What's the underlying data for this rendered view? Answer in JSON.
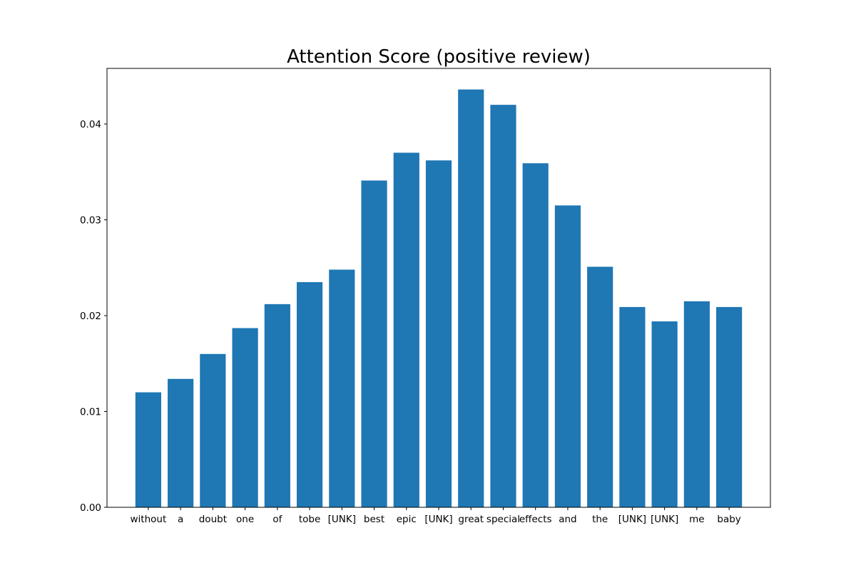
{
  "chart_data": {
    "type": "bar",
    "title": "Attention Score (positive review)",
    "xlabel": "",
    "ylabel": "",
    "categories": [
      "without",
      "a",
      "doubt",
      "one",
      "of",
      "tobe",
      "[UNK]",
      "best",
      "epic",
      "[UNK]",
      "great",
      "special",
      "effects",
      "and",
      "the",
      "[UNK]",
      "[UNK]",
      "me",
      "baby"
    ],
    "values": [
      0.012,
      0.0134,
      0.016,
      0.0187,
      0.0212,
      0.0235,
      0.0248,
      0.0341,
      0.037,
      0.0362,
      0.0436,
      0.042,
      0.0359,
      0.0315,
      0.0251,
      0.0209,
      0.0194,
      0.0215,
      0.0209
    ],
    "ylim": [
      0,
      0.0458
    ],
    "yticks": [
      0.0,
      0.01,
      0.02,
      0.03,
      0.04
    ],
    "ytick_labels": [
      "0.00",
      "0.01",
      "0.02",
      "0.03",
      "0.04"
    ],
    "bar_color": "#1f77b4",
    "grid": false,
    "legend": "none"
  }
}
